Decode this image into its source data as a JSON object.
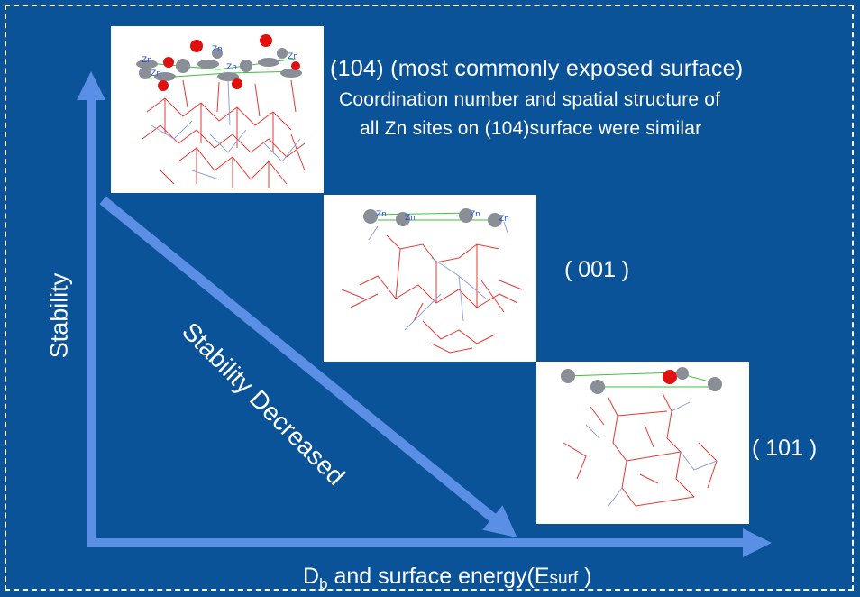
{
  "labels": {
    "surface_104": "(104) (most commonly exposed surface)",
    "description_line1": "Coordination number and spatial structure of",
    "description_line2": "all Zn sites  on (104)surface were similar",
    "surface_001": "( 001 )",
    "surface_101": "( 101 )",
    "y_axis": "Stability",
    "diagonal": "Stability Decreased",
    "x_axis_prefix": "D",
    "x_axis_sub": "b",
    "x_axis_middle": " and surface energy(E",
    "x_axis_sub2": "surf",
    "x_axis_suffix": " )"
  },
  "atom_label": "Zn",
  "colors": {
    "background": "#0a5399",
    "arrow": "#5b8fe6",
    "text": "#ffffff",
    "bond_red": "#e53935",
    "bond_blue": "#8fa0d8",
    "bond_green": "#3cc13c",
    "zn_atom": "#8a8e96",
    "o_atom": "#e01010"
  }
}
